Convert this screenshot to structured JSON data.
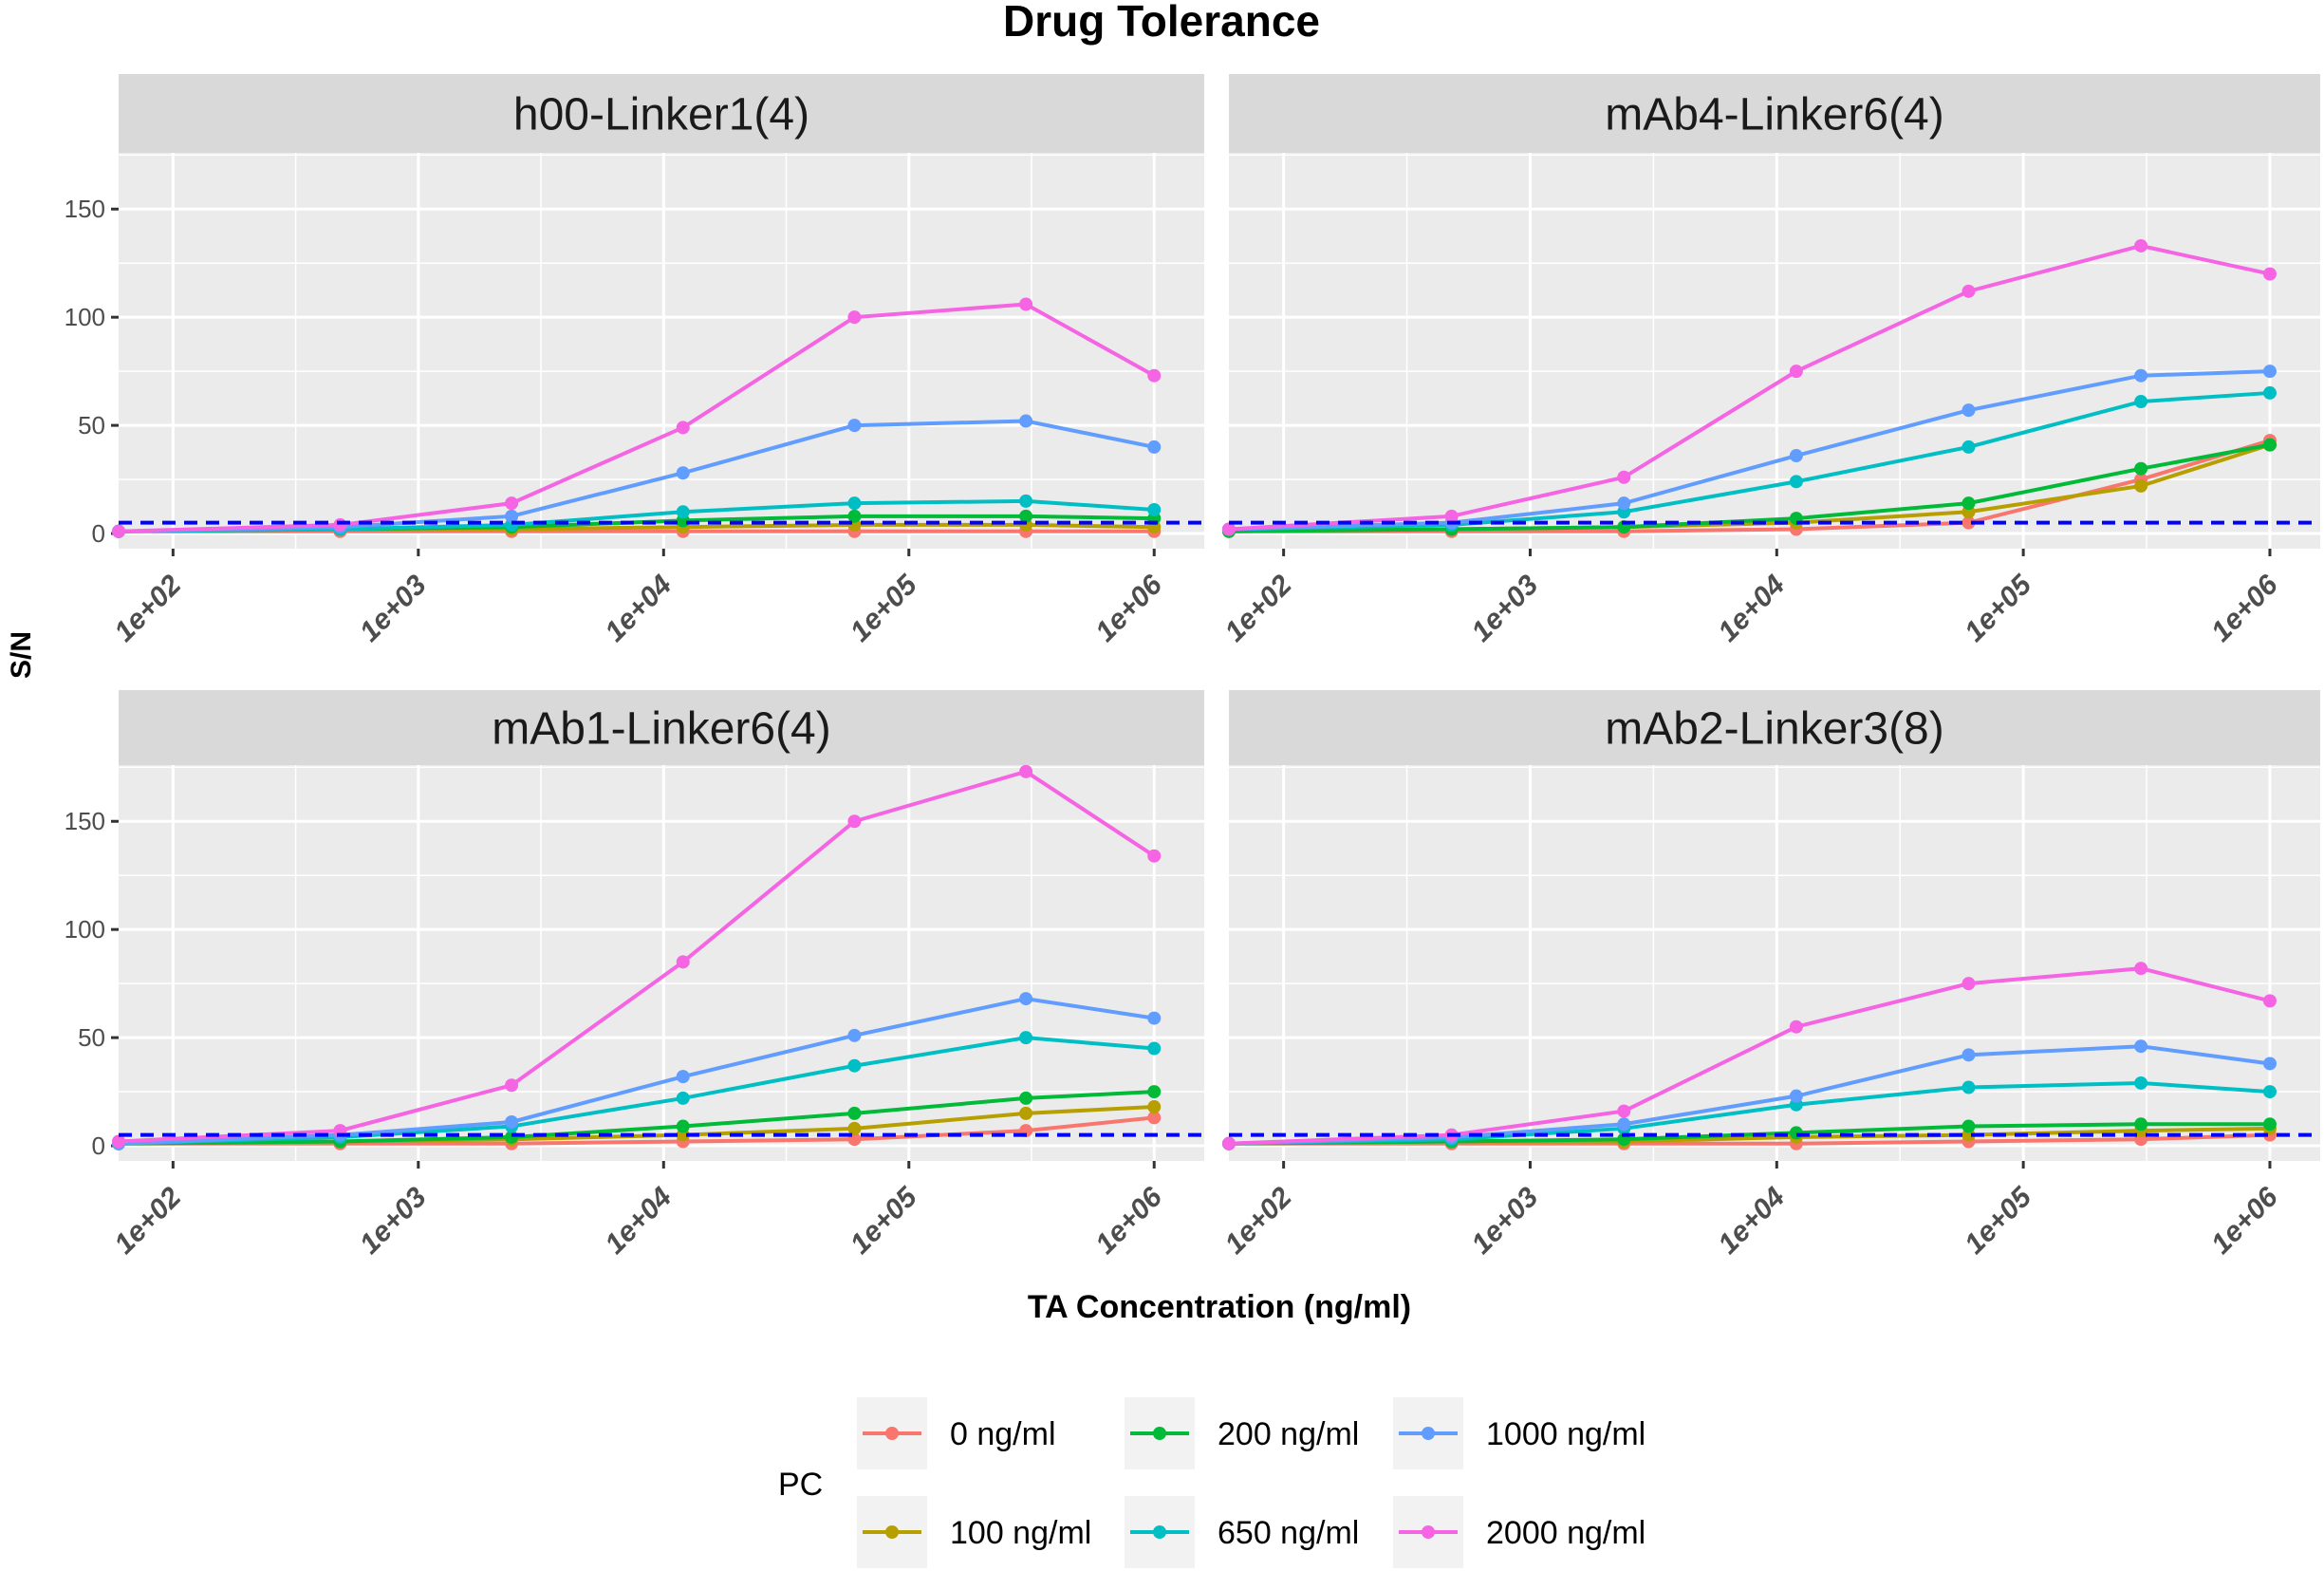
{
  "chart_data": {
    "type": "line",
    "title": "Drug Tolerance",
    "xlabel": "TA Concentration (ng/ml)",
    "ylabel": "S/N",
    "x_scale": "log10",
    "x": [
      60,
      480,
      2400,
      12000,
      60000,
      300000,
      1000000
    ],
    "xlim": [
      60,
      1600000
    ],
    "ylim": [
      -7,
      176
    ],
    "x_ticks": [
      100,
      1000,
      10000,
      100000,
      1000000
    ],
    "x_tick_labels": [
      "1e+02",
      "1e+03",
      "1e+04",
      "1e+05",
      "1e+06"
    ],
    "y_ticks": [
      0,
      50,
      100,
      150
    ],
    "y_tick_labels": [
      "0",
      "50",
      "100",
      "150"
    ],
    "threshold": {
      "value": 5,
      "style": "dashed",
      "color": "#0000FF"
    },
    "grid": true,
    "legend": {
      "title": "PC",
      "placement": "bottom",
      "entries": [
        {
          "label": "0 ng/ml",
          "color": "#F8766D"
        },
        {
          "label": "100 ng/ml",
          "color": "#B79F00"
        },
        {
          "label": "200 ng/ml",
          "color": "#00BA38"
        },
        {
          "label": "650 ng/ml",
          "color": "#00BFC4"
        },
        {
          "label": "1000 ng/ml",
          "color": "#619CFF"
        },
        {
          "label": "2000 ng/ml",
          "color": "#F564E3"
        }
      ]
    },
    "panels": [
      {
        "title": "h00-Linker1(4)",
        "series": [
          {
            "name": "0 ng/ml",
            "values": [
              1,
              1,
              1,
              1,
              1,
              1,
              1
            ]
          },
          {
            "name": "100 ng/ml",
            "values": [
              1,
              2,
              2,
              3,
              4,
              4,
              3
            ]
          },
          {
            "name": "200 ng/ml",
            "values": [
              1,
              2,
              3,
              6,
              8,
              8,
              7
            ]
          },
          {
            "name": "650 ng/ml",
            "values": [
              1,
              2,
              4,
              10,
              14,
              15,
              11
            ]
          },
          {
            "name": "1000 ng/ml",
            "values": [
              1,
              3,
              8,
              28,
              50,
              52,
              40
            ]
          },
          {
            "name": "2000 ng/ml",
            "values": [
              1,
              4,
              14,
              49,
              100,
              106,
              73
            ]
          }
        ]
      },
      {
        "title": "mAb4-Linker6(4)",
        "series": [
          {
            "name": "0 ng/ml",
            "values": [
              1,
              1,
              1,
              2,
              5,
              25,
              43
            ]
          },
          {
            "name": "100 ng/ml",
            "values": [
              1,
              2,
              3,
              5,
              10,
              22,
              41
            ]
          },
          {
            "name": "200 ng/ml",
            "values": [
              1,
              2,
              3,
              7,
              14,
              30,
              41
            ]
          },
          {
            "name": "650 ng/ml",
            "values": [
              2,
              4,
              10,
              24,
              40,
              61,
              65
            ]
          },
          {
            "name": "1000 ng/ml",
            "values": [
              2,
              5,
              14,
              36,
              57,
              73,
              75
            ]
          },
          {
            "name": "2000 ng/ml",
            "values": [
              2,
              8,
              26,
              75,
              112,
              133,
              120
            ]
          }
        ]
      },
      {
        "title": "mAb1-Linker6(4)",
        "series": [
          {
            "name": "0 ng/ml",
            "values": [
              1,
              1,
              1,
              2,
              3,
              7,
              13
            ]
          },
          {
            "name": "100 ng/ml",
            "values": [
              1,
              2,
              3,
              5,
              8,
              15,
              18
            ]
          },
          {
            "name": "200 ng/ml",
            "values": [
              1,
              2,
              4,
              9,
              15,
              22,
              25
            ]
          },
          {
            "name": "650 ng/ml",
            "values": [
              1,
              4,
              9,
              22,
              37,
              50,
              45
            ]
          },
          {
            "name": "1000 ng/ml",
            "values": [
              1,
              5,
              11,
              32,
              51,
              68,
              59
            ]
          },
          {
            "name": "2000 ng/ml",
            "values": [
              2,
              7,
              28,
              85,
              150,
              173,
              134
            ]
          }
        ]
      },
      {
        "title": "mAb2-Linker3(8)",
        "series": [
          {
            "name": "0 ng/ml",
            "values": [
              1,
              1,
              1,
              1,
              2,
              3,
              5
            ]
          },
          {
            "name": "100 ng/ml",
            "values": [
              1,
              2,
              2,
              4,
              5,
              7,
              8
            ]
          },
          {
            "name": "200 ng/ml",
            "values": [
              1,
              2,
              3,
              6,
              9,
              10,
              10
            ]
          },
          {
            "name": "650 ng/ml",
            "values": [
              1,
              3,
              8,
              19,
              27,
              29,
              25
            ]
          },
          {
            "name": "1000 ng/ml",
            "values": [
              1,
              4,
              10,
              23,
              42,
              46,
              38
            ]
          },
          {
            "name": "2000 ng/ml",
            "values": [
              1,
              5,
              16,
              55,
              75,
              82,
              67
            ]
          }
        ]
      }
    ]
  }
}
